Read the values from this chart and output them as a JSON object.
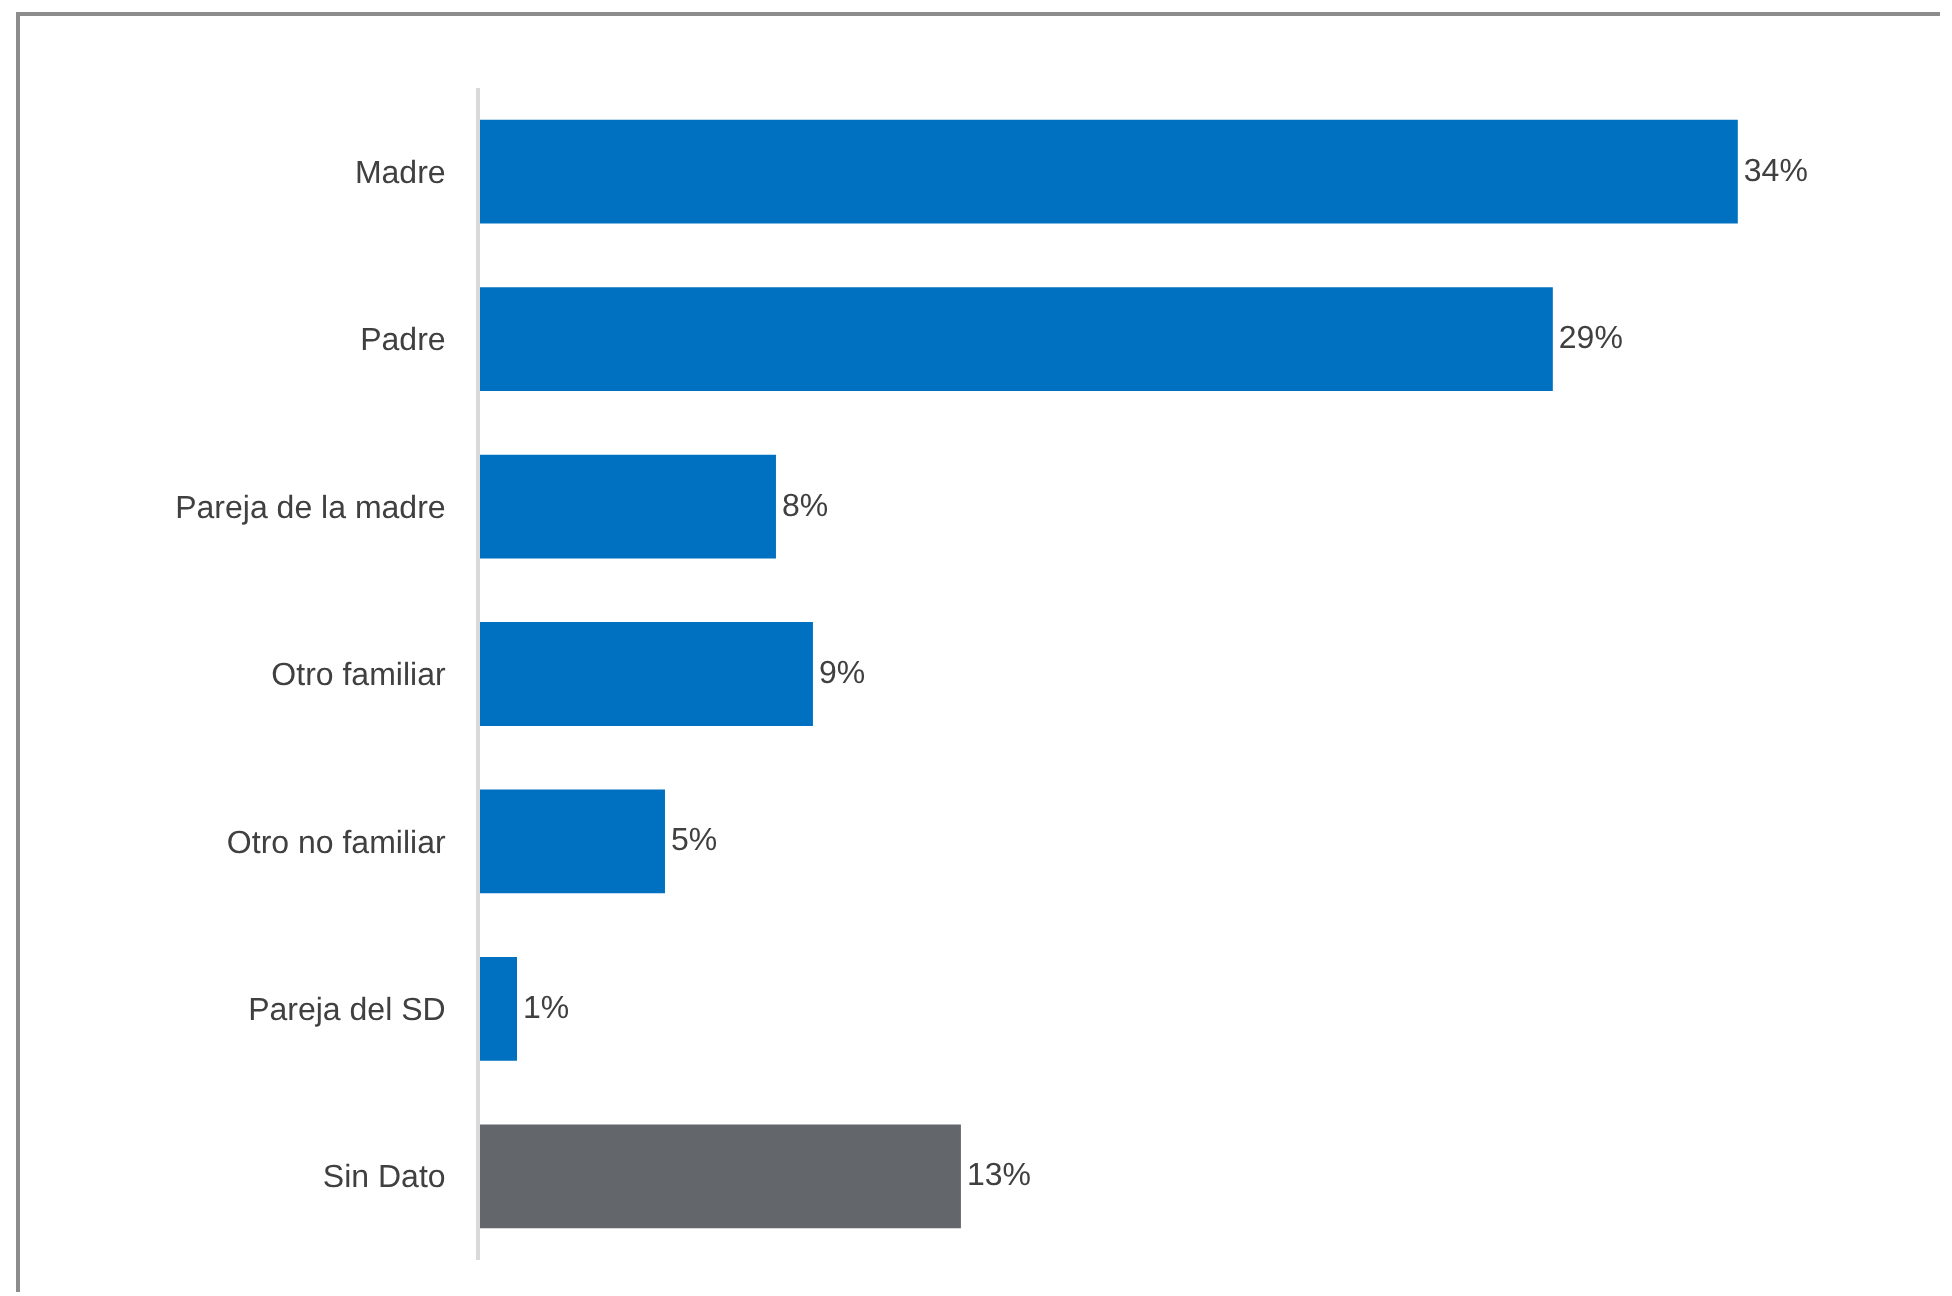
{
  "chart_data": {
    "type": "bar",
    "orientation": "horizontal",
    "categories": [
      "Madre",
      "Padre",
      "Pareja de la madre",
      "Otro familiar",
      "Otro no familiar",
      "Pareja del SD",
      "Sin Dato"
    ],
    "values": [
      34,
      29,
      8,
      9,
      5,
      1,
      13
    ],
    "colors": [
      "#0070c0",
      "#0070c0",
      "#0070c0",
      "#0070c0",
      "#0070c0",
      "#0070c0",
      "#63666a"
    ],
    "value_labels": [
      "34%",
      "29%",
      "8%",
      "9%",
      "5%",
      "1%",
      "13%"
    ]
  }
}
